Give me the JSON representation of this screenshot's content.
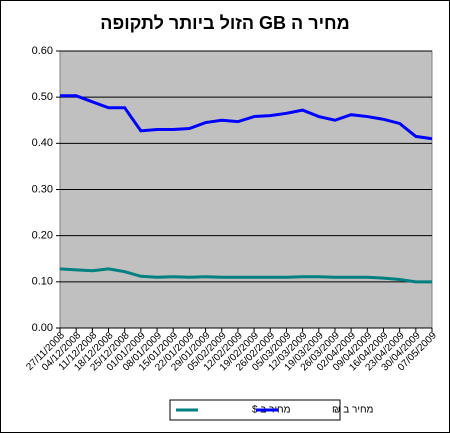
{
  "chart_data": {
    "type": "line",
    "title": "מחיר ה GB הזול ביותר לתקופה",
    "categories": [
      "27/11/2008",
      "04/12/2008",
      "11/12/2008",
      "18/12/2008",
      "25/12/2008",
      "01/01/2009",
      "08/01/2009",
      "15/01/2009",
      "22/01/2009",
      "29/01/2009",
      "05/02/2009",
      "12/02/2009",
      "19/02/2009",
      "26/02/2009",
      "05/03/2009",
      "12/03/2009",
      "19/03/2009",
      "26/03/2009",
      "02/04/2009",
      "09/04/2009",
      "16/04/2009",
      "23/04/2009",
      "30/04/2009",
      "07/05/2009"
    ],
    "series": [
      {
        "name": "מחיר ב $",
        "color": "#008080",
        "values": [
          0.128,
          0.126,
          0.124,
          0.128,
          0.122,
          0.112,
          0.11,
          0.111,
          0.11,
          0.111,
          0.11,
          0.11,
          0.11,
          0.11,
          0.11,
          0.111,
          0.111,
          0.11,
          0.11,
          0.11,
          0.108,
          0.105,
          0.1,
          0.1
        ]
      },
      {
        "name": "מחיר ב ₪",
        "color": "#0000ff",
        "values": [
          0.503,
          0.503,
          0.49,
          0.477,
          0.477,
          0.427,
          0.43,
          0.43,
          0.432,
          0.445,
          0.45,
          0.447,
          0.458,
          0.46,
          0.465,
          0.472,
          0.458,
          0.45,
          0.462,
          0.458,
          0.452,
          0.443,
          0.415,
          0.41
        ]
      }
    ],
    "ylim": [
      0,
      0.6
    ],
    "yticks": [
      {
        "value": 0,
        "label": "0.00"
      },
      {
        "value": 0.1,
        "label": "0.10"
      },
      {
        "value": 0.2,
        "label": "0.20"
      },
      {
        "value": 0.3,
        "label": "0.30"
      },
      {
        "value": 0.4,
        "label": "0.40"
      },
      {
        "value": 0.5,
        "label": "0.50"
      },
      {
        "value": 0.6,
        "label": "0.60"
      }
    ],
    "grid": true,
    "plot_background": "#c0c0c0",
    "legend": "bottom"
  }
}
